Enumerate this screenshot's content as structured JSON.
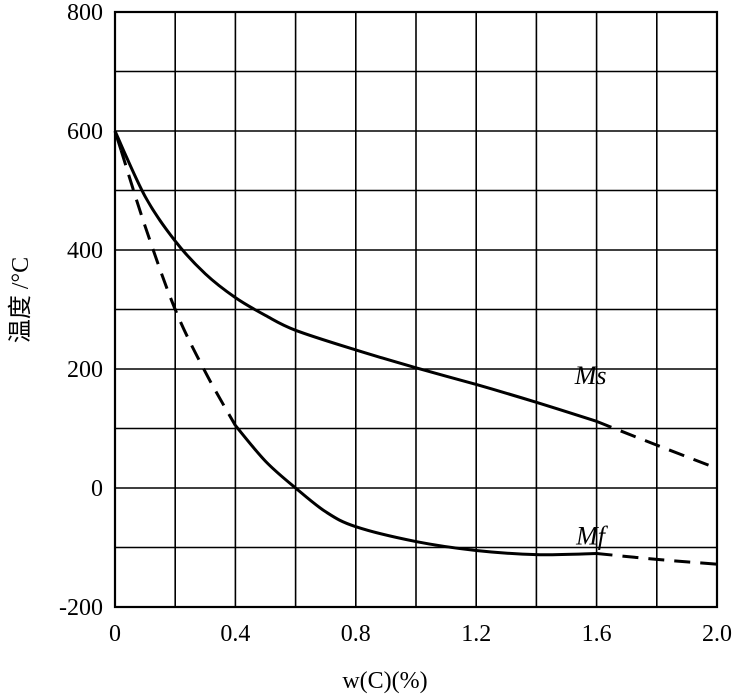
{
  "chart_data": {
    "type": "line",
    "xlabel": "w(C)(%)",
    "ylabel": "温度 /°C",
    "xlim": [
      0,
      2.0
    ],
    "ylim": [
      -200,
      800
    ],
    "x_ticks": [
      0,
      0.4,
      0.8,
      1.2,
      1.6,
      2.0
    ],
    "x_tick_labels": [
      "0",
      "0.4",
      "0.8",
      "1.2",
      "1.6",
      "2.0"
    ],
    "y_ticks": [
      -200,
      0,
      200,
      400,
      600,
      800
    ],
    "y_tick_labels": [
      "-200",
      "0",
      "200",
      "400",
      "600",
      "800"
    ],
    "x_grid_step": 0.2,
    "y_grid_step": 100,
    "grid": true,
    "series": [
      {
        "name": "Ms",
        "points": [
          [
            0,
            600
          ],
          [
            0.1,
            490
          ],
          [
            0.2,
            415
          ],
          [
            0.3,
            360
          ],
          [
            0.4,
            320
          ],
          [
            0.5,
            290
          ],
          [
            0.6,
            265
          ],
          [
            0.8,
            232
          ],
          [
            1.0,
            202
          ],
          [
            1.2,
            174
          ],
          [
            1.4,
            144
          ],
          [
            1.6,
            112
          ],
          [
            1.8,
            72
          ],
          [
            2.0,
            33
          ]
        ],
        "dashed_from_x": 1.6
      },
      {
        "name": "Mf",
        "points": [
          [
            0,
            600
          ],
          [
            0.1,
            440
          ],
          [
            0.2,
            300
          ],
          [
            0.3,
            195
          ],
          [
            0.4,
            105
          ],
          [
            0.5,
            45
          ],
          [
            0.6,
            0
          ],
          [
            0.7,
            -40
          ],
          [
            0.8,
            -65
          ],
          [
            1.0,
            -90
          ],
          [
            1.2,
            -105
          ],
          [
            1.4,
            -112
          ],
          [
            1.6,
            -110
          ],
          [
            1.8,
            -120
          ],
          [
            2.0,
            -128
          ]
        ],
        "dashed_x_range": [
          0.02,
          0.4
        ],
        "dashed_from_x": 1.6
      }
    ],
    "series_labels": [
      {
        "text": "Ms",
        "x": 1.58,
        "y": 175
      },
      {
        "text": "Mf",
        "x": 1.58,
        "y": -95
      }
    ]
  }
}
